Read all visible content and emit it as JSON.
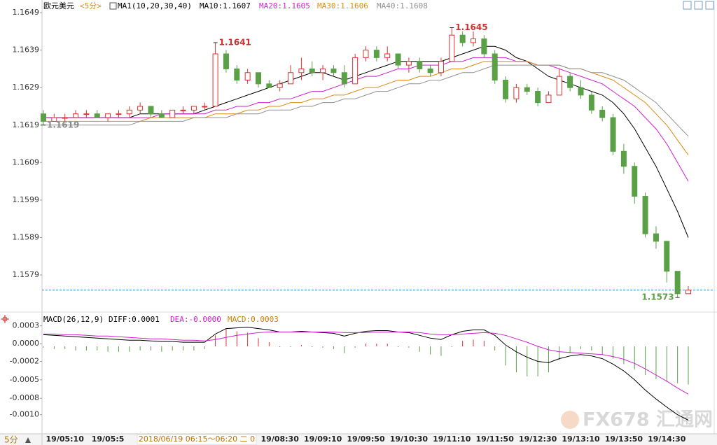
{
  "chart_data": [
    {
      "type": "candlestick",
      "title": "欧元美元",
      "period": "<5分>",
      "indicator": "MA1(10,20,30,40)",
      "categories": [
        null,
        null,
        "19/05:10",
        null,
        null,
        null,
        "19/05:5",
        null,
        null,
        null,
        null,
        null,
        null,
        null,
        null,
        null,
        null,
        null,
        null,
        null,
        null,
        null,
        "19/08:30",
        null,
        null,
        null,
        "19/09:10",
        null,
        null,
        null,
        "19/09:50",
        null,
        null,
        null,
        "19/10:30",
        null,
        null,
        null,
        "19/11:10",
        null,
        null,
        null,
        "19/11:50",
        null,
        null,
        null,
        "19/12:30",
        null,
        null,
        null,
        "19/13:10",
        null,
        null,
        null,
        "19/13:50",
        null,
        null,
        null,
        "19/14:30",
        null,
        null
      ],
      "cursor_label": "2018/06/19 06:15～06:20 二 0",
      "open": [
        1.1622,
        1.162,
        1.1621,
        1.1621,
        1.1622,
        1.1622,
        1.1621,
        1.1622,
        1.1622,
        1.1623,
        1.1624,
        1.1622,
        1.1621,
        1.1623,
        1.1623,
        1.1624,
        1.1624,
        1.1638,
        1.1634,
        1.1631,
        1.1633,
        1.163,
        1.1629,
        1.163,
        1.1633,
        1.1634,
        1.1633,
        1.1634,
        1.1633,
        1.163,
        1.1637,
        1.1639,
        1.1637,
        1.1638,
        1.1635,
        1.1636,
        1.1634,
        1.1633,
        1.1636,
        1.1643,
        1.1641,
        1.1642,
        1.1638,
        1.1631,
        1.1626,
        1.1629,
        1.1628,
        1.1625,
        1.1627,
        1.1632,
        1.1629,
        1.1627,
        1.1623,
        1.1621,
        1.1612,
        1.1608,
        1.16,
        1.159,
        1.1588,
        1.158,
        1.1574
      ],
      "high": [
        1.1623,
        1.1622,
        1.1622,
        1.1623,
        1.1623,
        1.1623,
        1.1622,
        1.1623,
        1.1624,
        1.1625,
        1.1624,
        1.1623,
        1.1623,
        1.1624,
        1.1624,
        1.1625,
        1.1641,
        1.1639,
        1.1635,
        1.1634,
        1.1633,
        1.1631,
        1.1631,
        1.1635,
        1.1637,
        1.1636,
        1.1635,
        1.1635,
        1.1635,
        1.1638,
        1.164,
        1.164,
        1.164,
        1.1638,
        1.1637,
        1.1637,
        1.1635,
        1.1637,
        1.1645,
        1.1644,
        1.1644,
        1.1643,
        1.1639,
        1.1632,
        1.163,
        1.163,
        1.1629,
        1.1628,
        1.1634,
        1.1633,
        1.1631,
        1.1628,
        1.1624,
        1.1622,
        1.1614,
        1.1609,
        1.1601,
        1.1592,
        1.1588,
        1.158,
        1.1576
      ],
      "low": [
        1.1619,
        1.162,
        1.162,
        1.1621,
        1.1621,
        1.1621,
        1.162,
        1.1621,
        1.1621,
        1.1622,
        1.1621,
        1.1621,
        1.1621,
        1.1622,
        1.1622,
        1.1623,
        1.1624,
        1.1633,
        1.163,
        1.163,
        1.1629,
        1.1629,
        1.1628,
        1.163,
        1.1631,
        1.1632,
        1.1631,
        1.1632,
        1.1629,
        1.163,
        1.1636,
        1.1636,
        1.1636,
        1.1634,
        1.1633,
        1.1633,
        1.1632,
        1.1632,
        1.1636,
        1.164,
        1.164,
        1.1637,
        1.163,
        1.1625,
        1.1625,
        1.1627,
        1.1624,
        1.1625,
        1.1627,
        1.1628,
        1.1626,
        1.1622,
        1.162,
        1.1611,
        1.1606,
        1.1598,
        1.1589,
        1.1586,
        1.1577,
        1.1573,
        1.1574
      ],
      "close": [
        1.162,
        1.1621,
        1.1621,
        1.1622,
        1.1622,
        1.1621,
        1.1622,
        1.1622,
        1.1623,
        1.1624,
        1.1622,
        1.1621,
        1.1623,
        1.1623,
        1.1624,
        1.1624,
        1.1638,
        1.1634,
        1.1631,
        1.1633,
        1.163,
        1.1629,
        1.163,
        1.1633,
        1.1634,
        1.1633,
        1.1634,
        1.1633,
        1.163,
        1.1637,
        1.1639,
        1.1637,
        1.1638,
        1.1635,
        1.1636,
        1.1634,
        1.1633,
        1.1636,
        1.1643,
        1.1641,
        1.1642,
        1.1638,
        1.1631,
        1.1626,
        1.1629,
        1.1628,
        1.1625,
        1.1627,
        1.1632,
        1.1629,
        1.1627,
        1.1623,
        1.1621,
        1.1612,
        1.1608,
        1.16,
        1.159,
        1.1588,
        1.158,
        1.1574,
        1.1575
      ],
      "up_color": "#e03030",
      "down_color": "#5aa046",
      "ma_lines": [
        {
          "name": "MA10:1.1607",
          "color": "#000000",
          "values": [
            1.1621,
            1.1621,
            1.1621,
            1.1621,
            1.1621,
            1.1621,
            1.1621,
            1.1621,
            1.1621,
            1.1622,
            1.1622,
            1.1622,
            1.1622,
            1.1622,
            1.1622,
            1.1623,
            1.1624,
            1.1625,
            1.1626,
            1.1627,
            1.1628,
            1.1629,
            1.163,
            1.1631,
            1.1632,
            1.1633,
            1.1633,
            1.1632,
            1.1631,
            1.1632,
            1.1633,
            1.1634,
            1.1635,
            1.1636,
            1.1636,
            1.1636,
            1.1636,
            1.1636,
            1.1637,
            1.1638,
            1.1639,
            1.164,
            1.164,
            1.1639,
            1.1637,
            1.1636,
            1.1634,
            1.1632,
            1.1631,
            1.163,
            1.1629,
            1.1628,
            1.1627,
            1.1625,
            1.1622,
            1.1618,
            1.1613,
            1.1608,
            1.1602,
            1.1596,
            1.1589
          ]
        },
        {
          "name": "MA20:1.1605",
          "color": "#d020d0",
          "values": [
            1.1621,
            1.1621,
            1.1621,
            1.1621,
            1.1621,
            1.1621,
            1.1621,
            1.1621,
            1.1621,
            1.1621,
            1.1621,
            1.1622,
            1.1622,
            1.1622,
            1.1622,
            1.1622,
            1.1623,
            1.1623,
            1.1624,
            1.1624,
            1.1625,
            1.1625,
            1.1626,
            1.1626,
            1.1627,
            1.1628,
            1.1628,
            1.1629,
            1.163,
            1.1631,
            1.1632,
            1.1632,
            1.1633,
            1.1634,
            1.1634,
            1.1635,
            1.1635,
            1.1635,
            1.1636,
            1.1636,
            1.1637,
            1.1637,
            1.1637,
            1.1637,
            1.1636,
            1.1636,
            1.1635,
            1.1635,
            1.1634,
            1.1633,
            1.1632,
            1.1631,
            1.163,
            1.1628,
            1.1626,
            1.1624,
            1.1621,
            1.1618,
            1.1614,
            1.1609,
            1.1604
          ]
        },
        {
          "name": "MA30:1.1606",
          "color": "#e08a10",
          "values": [
            1.162,
            1.162,
            1.162,
            1.162,
            1.162,
            1.162,
            1.162,
            1.162,
            1.162,
            1.162,
            1.1621,
            1.1621,
            1.1621,
            1.1621,
            1.1621,
            1.1621,
            1.1622,
            1.1622,
            1.1622,
            1.1623,
            1.1623,
            1.1624,
            1.1624,
            1.1625,
            1.1625,
            1.1626,
            1.1626,
            1.1627,
            1.1627,
            1.1628,
            1.1629,
            1.1629,
            1.163,
            1.1631,
            1.1631,
            1.1632,
            1.1632,
            1.1633,
            1.1634,
            1.1634,
            1.1635,
            1.1636,
            1.1636,
            1.1636,
            1.1636,
            1.1636,
            1.1635,
            1.1635,
            1.1635,
            1.1634,
            1.1634,
            1.1633,
            1.1632,
            1.1631,
            1.1629,
            1.1627,
            1.1625,
            1.1622,
            1.1619,
            1.1615,
            1.1611
          ]
        },
        {
          "name": "MA40:1.1608",
          "color": "#909090",
          "values": [
            1.1619,
            1.1619,
            1.1619,
            1.1619,
            1.1619,
            1.1619,
            1.1619,
            1.1619,
            1.1619,
            1.162,
            1.162,
            1.162,
            1.162,
            1.162,
            1.1621,
            1.1621,
            1.1621,
            1.1621,
            1.1622,
            1.1622,
            1.1622,
            1.1623,
            1.1623,
            1.1623,
            1.1624,
            1.1624,
            1.1625,
            1.1625,
            1.1626,
            1.1626,
            1.1627,
            1.1628,
            1.1628,
            1.1629,
            1.163,
            1.163,
            1.1631,
            1.1631,
            1.1632,
            1.1633,
            1.1633,
            1.1634,
            1.1635,
            1.1635,
            1.1635,
            1.1635,
            1.1635,
            1.1635,
            1.1635,
            1.1634,
            1.1634,
            1.1633,
            1.1633,
            1.1632,
            1.1631,
            1.1629,
            1.1627,
            1.1625,
            1.1622,
            1.1619,
            1.1616
          ]
        }
      ],
      "high_marks": [
        1.1641,
        1.1645
      ],
      "low_marks": [
        1.1619,
        1.1573
      ],
      "last_price": 1.1575,
      "ylim": [
        1.15693,
        1.1652
      ],
      "yticks": [
        1.1649,
        1.1639,
        1.1629,
        1.1619,
        1.1609,
        1.1599,
        1.1589,
        1.1579
      ]
    },
    {
      "type": "macd",
      "title": "MACD(26,12,9)",
      "series": [
        {
          "name": "DIFF:0.0001",
          "color": "#000000",
          "values": [
            0.00017,
            0.00016,
            0.00015,
            0.00014,
            0.00013,
            0.00012,
            0.00011,
            0.0001,
            9e-05,
            9e-05,
            8e-05,
            7e-05,
            7e-05,
            6e-05,
            6e-05,
            6e-05,
            0.00018,
            0.00026,
            0.00027,
            0.00028,
            0.00026,
            0.00024,
            0.00021,
            0.00021,
            0.00022,
            0.00021,
            0.0002,
            0.00019,
            0.00015,
            0.00019,
            0.00022,
            0.00023,
            0.00023,
            0.00021,
            0.0002,
            0.00016,
            0.00012,
            0.0001,
            0.00017,
            0.00022,
            0.00024,
            0.00024,
            0.00016,
            2e-05,
            -8e-05,
            -0.00016,
            -0.00022,
            -0.00024,
            -0.00018,
            -0.00014,
            -0.00012,
            -0.00014,
            -0.00018,
            -0.00026,
            -0.00036,
            -0.00049,
            -0.00064,
            -0.00077,
            -0.00089,
            -0.001,
            -0.00108
          ]
        },
        {
          "name": "DEA:-0.0000",
          "color": "#d020d0",
          "values": [
            0.00018,
            0.00018,
            0.00017,
            0.00017,
            0.00016,
            0.00015,
            0.00015,
            0.00014,
            0.00013,
            0.00012,
            0.00011,
            0.00011,
            0.0001,
            9e-05,
            9e-05,
            8e-05,
            0.0001,
            0.00013,
            0.00016,
            0.00018,
            0.0002,
            0.00021,
            0.00021,
            0.00021,
            0.00021,
            0.00021,
            0.00021,
            0.00021,
            0.0002,
            0.0002,
            0.0002,
            0.00021,
            0.00021,
            0.00021,
            0.00021,
            0.0002,
            0.00018,
            0.00017,
            0.00017,
            0.00018,
            0.00019,
            0.0002,
            0.00019,
            0.00016,
            0.00011,
            6e-05,
            0.0,
            -5e-05,
            -8e-05,
            -9e-05,
            -0.0001,
            -0.00011,
            -0.00012,
            -0.00015,
            -0.00019,
            -0.00025,
            -0.00033,
            -0.00042,
            -0.00051,
            -0.00061,
            -0.0007
          ]
        },
        {
          "name": "MACD:0.0003",
          "color": "#d08000",
          "up_color": "#e03030",
          "down_color": "#5aa046",
          "values": [
            -2e-05,
            -4e-05,
            -4e-05,
            -6e-05,
            -6e-05,
            -6e-05,
            -8e-05,
            -8e-05,
            -8e-05,
            -6e-05,
            -6e-05,
            -8e-05,
            -6e-05,
            -6e-05,
            -6e-05,
            -4e-05,
            0.00016,
            0.00026,
            0.00022,
            0.0002,
            0.00012,
            6e-05,
            0.0,
            0.0,
            2e-05,
            0.0,
            -2e-05,
            -4e-05,
            -0.0001,
            -2e-05,
            4e-05,
            4e-05,
            4e-05,
            0.0,
            -2e-05,
            -8e-05,
            -0.00012,
            -0.00014,
            0.0,
            8e-05,
            0.0001,
            8e-05,
            -6e-05,
            -0.00028,
            -0.00038,
            -0.00044,
            -0.00044,
            -0.00038,
            -0.0002,
            -0.0001,
            -4e-05,
            -6e-05,
            -0.00012,
            -0.00018,
            -0.00026,
            -0.00034,
            -0.00042,
            -0.00048,
            -0.00052,
            -0.00054,
            -0.00056
          ]
        }
      ],
      "ylim": [
        -0.00128,
        0.00044
      ],
      "yticks": [
        0.0003,
        {
          "value": 4e-05,
          "label": "0.0000"
        },
        {
          "value": -0.00022,
          "label": "-0.0002"
        },
        {
          "value": -0.00049,
          "label": "-0.0005"
        },
        {
          "value": -0.00076,
          "label": "-0.0008"
        },
        {
          "value": -0.001,
          "label": "-0.0010"
        }
      ]
    }
  ],
  "footer": "5分",
  "watermark": "FX678 汇通网"
}
